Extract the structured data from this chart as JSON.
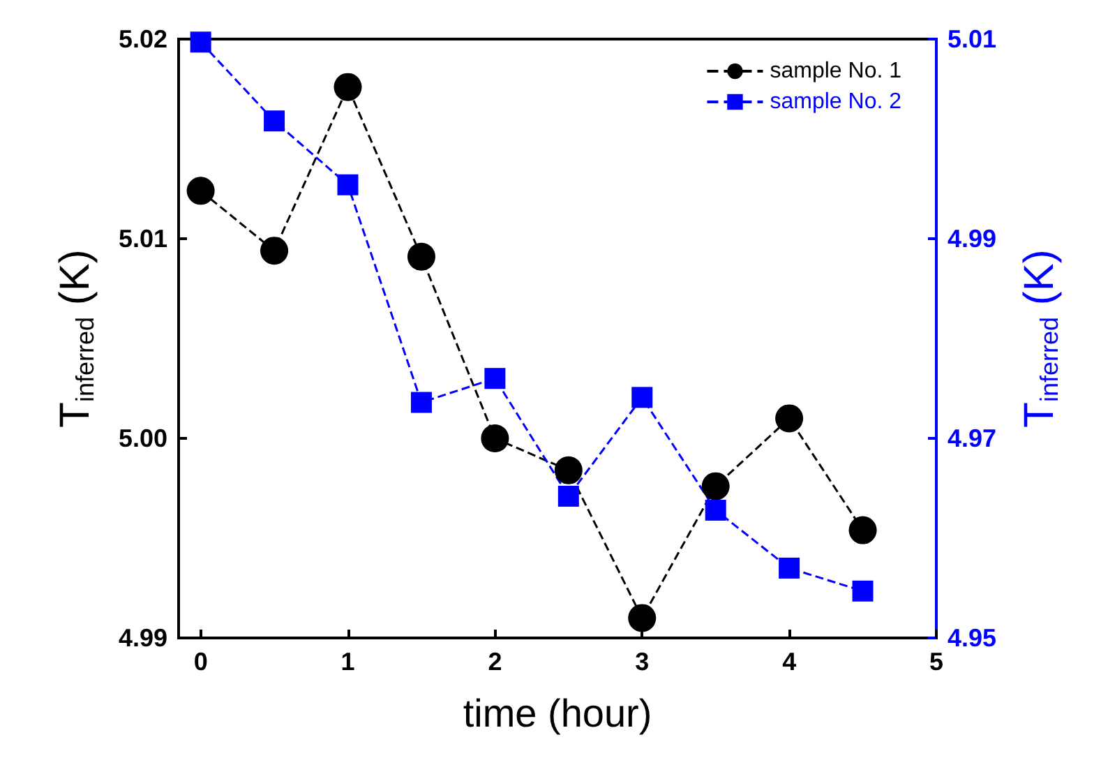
{
  "chart_data": {
    "type": "line",
    "xlabel": "time (hour)",
    "ylabel": "T$_{inferred}$ (K)",
    "y2label": "T$_{inferred}$ (K)",
    "xlim": [
      -0.15,
      5
    ],
    "xticks": [
      0,
      1,
      2,
      3,
      4,
      5
    ],
    "ylim": [
      4.99,
      5.02
    ],
    "yticks": [
      {
        "value": 4.99,
        "label": "4.99"
      },
      {
        "value": 5.0,
        "label": "5.00"
      },
      {
        "value": 5.01,
        "label": "5.01"
      },
      {
        "value": 5.02,
        "label": "5.02"
      }
    ],
    "y2lim": [
      4.95,
      5.01
    ],
    "y2ticks": [
      4.95,
      4.97,
      4.99,
      5.01
    ],
    "x": [
      0,
      0.5,
      1,
      1.5,
      2,
      2.5,
      3,
      3.5,
      4,
      4.5
    ],
    "series": [
      {
        "name": "sample No. 1",
        "color": "#000000",
        "marker": "circle",
        "values": [
          5.0124,
          5.0094,
          5.0176,
          5.0091,
          5.0,
          4.9984,
          4.991,
          4.9976,
          5.001,
          4.9954
        ]
      },
      {
        "name": "sample No. 2",
        "color": "#0000ff",
        "marker": "square",
        "axis": "y2",
        "values": [
          5.0097,
          5.0018,
          4.9954,
          4.9736,
          4.976,
          4.9642,
          4.9741,
          4.9628,
          4.957,
          4.9547
        ]
      }
    ],
    "line_style": "dashed",
    "grid": false,
    "legend": "top right"
  }
}
